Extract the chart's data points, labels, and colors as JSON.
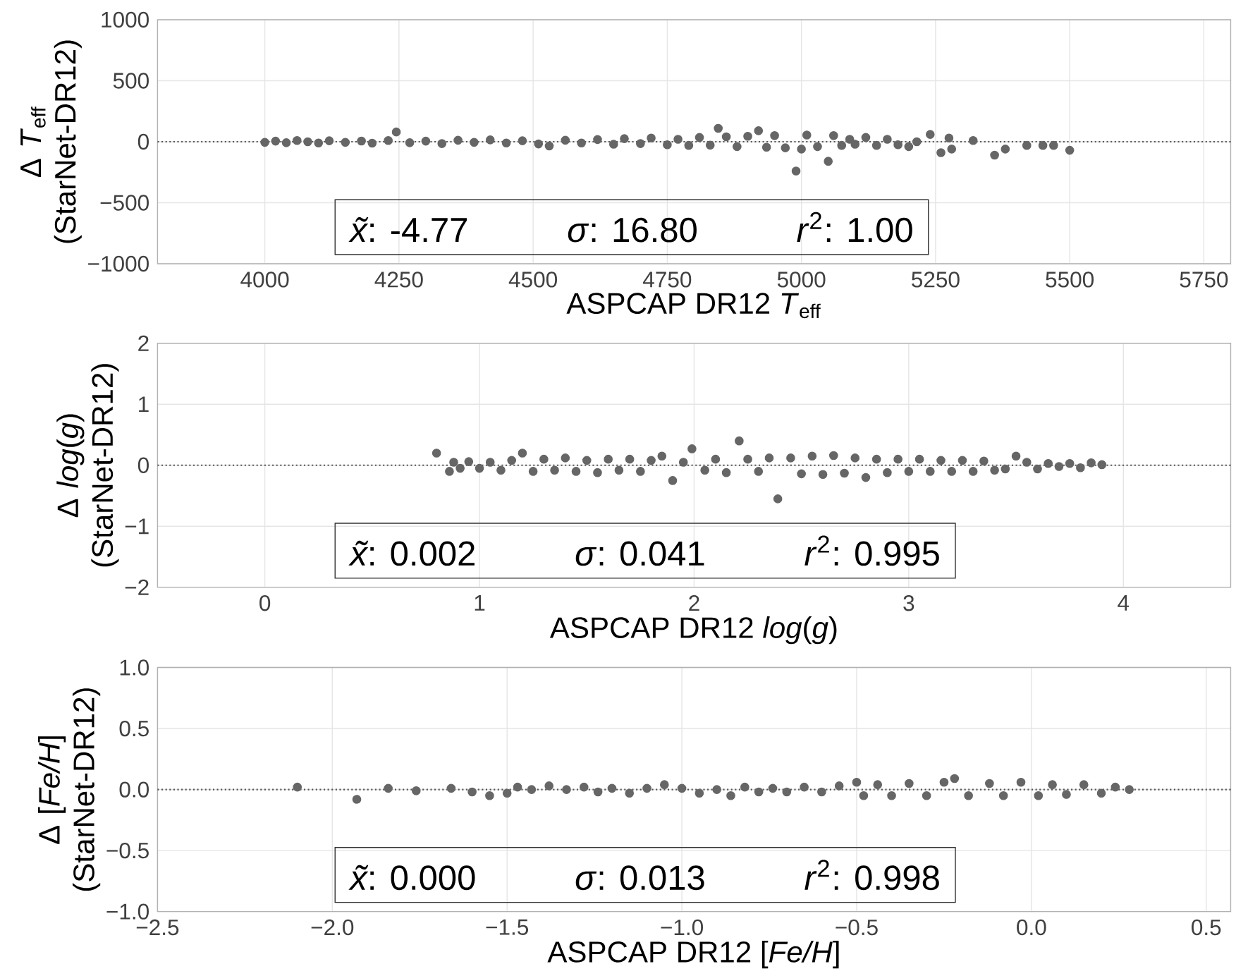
{
  "chart_data": [
    {
      "type": "scatter",
      "xlabel": "ASPCAP DR12 *T*$_{eff}$",
      "ylabel": "Δ *T*$_{eff}$ (StarNet-DR12)",
      "xlim": [
        3800,
        5800
      ],
      "ylim": [
        -1000,
        1000
      ],
      "xticks": [
        4000,
        4250,
        4500,
        4750,
        5000,
        5250,
        5500,
        5750
      ],
      "yticks": [
        {
          "value": -1000,
          "label": "−1000"
        },
        {
          "value": -500,
          "label": "−500"
        },
        0,
        500,
        1000
      ],
      "grid": true,
      "color": "#666666",
      "annotations": [
        "*x̃*:  -4.77",
        "*σ*:  16.80",
        "*r*$^{2}$:  1.00"
      ],
      "ref_lines": [
        {
          "axis": "y",
          "value": 0,
          "line_style": "dotted",
          "color": "#555555"
        }
      ],
      "x": [
        4000,
        4020,
        4040,
        4060,
        4080,
        4100,
        4120,
        4150,
        4180,
        4200,
        4230,
        4245,
        4270,
        4300,
        4330,
        4360,
        4390,
        4420,
        4450,
        4480,
        4510,
        4530,
        4560,
        4590,
        4620,
        4650,
        4670,
        4700,
        4720,
        4750,
        4770,
        4790,
        4810,
        4830,
        4845,
        4860,
        4880,
        4900,
        4920,
        4935,
        4950,
        4970,
        4990,
        5000,
        5010,
        5030,
        5050,
        5060,
        5075,
        5090,
        5100,
        5120,
        5140,
        5160,
        5180,
        5200,
        5215,
        5240,
        5260,
        5275,
        5280,
        5320,
        5360,
        5380,
        5420,
        5450,
        5470,
        5500
      ],
      "values": [
        -5,
        5,
        -8,
        10,
        0,
        -10,
        8,
        -5,
        6,
        -12,
        10,
        80,
        -8,
        5,
        -15,
        12,
        -5,
        15,
        -10,
        8,
        -18,
        -35,
        12,
        -10,
        18,
        -20,
        25,
        -15,
        30,
        -25,
        20,
        -30,
        35,
        -28,
        110,
        40,
        -40,
        45,
        90,
        -45,
        50,
        -50,
        -240,
        -60,
        55,
        -40,
        -160,
        50,
        -30,
        20,
        -20,
        35,
        -30,
        20,
        -25,
        -40,
        0,
        60,
        -90,
        30,
        -60,
        10,
        -110,
        -60,
        -30,
        -30,
        -30,
        -70
      ]
    },
    {
      "type": "scatter",
      "xlabel": "ASPCAP DR12 *log*(*g*)",
      "ylabel": "Δ *log*(*g*) (StarNet-DR12)",
      "xlim": [
        -0.5,
        4.5
      ],
      "ylim": [
        -2,
        2
      ],
      "xticks": [
        0,
        1,
        2,
        3,
        4
      ],
      "yticks": [
        {
          "value": -2,
          "label": "−2"
        },
        {
          "value": -1,
          "label": "−1"
        },
        0,
        1,
        2
      ],
      "grid": true,
      "color": "#666666",
      "annotations": [
        "*x̃*:  0.002",
        "*σ*:  0.041",
        "*r*$^{2}$:  0.995"
      ],
      "ref_lines": [
        {
          "axis": "y",
          "value": 0,
          "line_style": "dotted",
          "color": "#555555"
        }
      ],
      "x": [
        0.8,
        0.86,
        0.88,
        0.91,
        0.95,
        1.0,
        1.05,
        1.1,
        1.15,
        1.2,
        1.25,
        1.3,
        1.35,
        1.4,
        1.45,
        1.5,
        1.55,
        1.6,
        1.65,
        1.7,
        1.75,
        1.8,
        1.85,
        1.9,
        1.95,
        1.99,
        2.05,
        2.1,
        2.15,
        2.21,
        2.25,
        2.3,
        2.35,
        2.39,
        2.45,
        2.5,
        2.55,
        2.6,
        2.65,
        2.7,
        2.75,
        2.8,
        2.85,
        2.9,
        2.95,
        3.0,
        3.05,
        3.1,
        3.15,
        3.2,
        3.25,
        3.3,
        3.35,
        3.4,
        3.45,
        3.5,
        3.55,
        3.6,
        3.65,
        3.7,
        3.75,
        3.8,
        3.85,
        3.9
      ],
      "values": [
        0.2,
        -0.1,
        0.05,
        -0.05,
        0.06,
        -0.05,
        0.05,
        -0.08,
        0.08,
        0.2,
        -0.1,
        0.1,
        -0.08,
        0.12,
        -0.1,
        0.08,
        -0.12,
        0.1,
        -0.08,
        0.1,
        -0.1,
        0.08,
        0.15,
        -0.25,
        0.05,
        0.27,
        -0.08,
        0.1,
        -0.12,
        0.4,
        0.1,
        -0.1,
        0.12,
        -0.55,
        0.12,
        -0.14,
        0.15,
        -0.15,
        0.16,
        -0.13,
        0.12,
        -0.2,
        0.1,
        -0.12,
        0.1,
        -0.1,
        0.1,
        -0.1,
        0.08,
        -0.1,
        0.08,
        -0.1,
        0.07,
        -0.08,
        -0.06,
        0.15,
        0.05,
        -0.06,
        0.03,
        -0.02,
        0.03,
        -0.04,
        0.04,
        0.01
      ]
    },
    {
      "type": "scatter",
      "xlabel": "ASPCAP DR12 [*Fe/H*]",
      "ylabel": "Δ [*Fe/H*] (StarNet-DR12)",
      "xlim": [
        -2.5,
        0.57
      ],
      "ylim": [
        -1,
        1
      ],
      "xticks": [
        {
          "value": -2.5,
          "label": "−2.5"
        },
        {
          "value": -2,
          "label": "−2.0"
        },
        {
          "value": -1.5,
          "label": "−1.5"
        },
        {
          "value": -1,
          "label": "−1.0"
        },
        {
          "value": -0.5,
          "label": "−0.5"
        },
        {
          "value": 0,
          "label": "0.0"
        },
        0.5
      ],
      "yticks": [
        {
          "value": -1,
          "label": "−1.0"
        },
        {
          "value": -0.5,
          "label": "−0.5"
        },
        {
          "value": 0,
          "label": "0.0"
        },
        0.5,
        {
          "value": 1,
          "label": "1.0"
        }
      ],
      "grid": true,
      "color": "#666666",
      "annotations": [
        "*x̃*:  0.000",
        "*σ*:  0.013",
        "*r*$^{2}$:  0.998"
      ],
      "ref_lines": [
        {
          "axis": "y",
          "value": 0,
          "line_style": "dotted",
          "color": "#555555"
        }
      ],
      "x": [
        -2.1,
        -1.93,
        -1.84,
        -1.76,
        -1.66,
        -1.6,
        -1.55,
        -1.5,
        -1.47,
        -1.43,
        -1.38,
        -1.33,
        -1.28,
        -1.24,
        -1.2,
        -1.15,
        -1.1,
        -1.05,
        -1.0,
        -0.95,
        -0.9,
        -0.86,
        -0.82,
        -0.78,
        -0.74,
        -0.7,
        -0.65,
        -0.6,
        -0.55,
        -0.5,
        -0.48,
        -0.44,
        -0.4,
        -0.35,
        -0.3,
        -0.25,
        -0.22,
        -0.18,
        -0.12,
        -0.08,
        -0.03,
        0.02,
        0.06,
        0.1,
        0.15,
        0.2,
        0.24,
        0.28
      ],
      "values": [
        0.02,
        -0.08,
        0.01,
        -0.01,
        0.01,
        -0.02,
        -0.05,
        -0.03,
        0.02,
        0.0,
        0.03,
        0.0,
        0.02,
        -0.02,
        0.01,
        -0.03,
        0.01,
        0.04,
        0.01,
        -0.03,
        0.0,
        -0.05,
        0.02,
        -0.02,
        0.01,
        -0.02,
        0.02,
        -0.02,
        0.03,
        0.06,
        -0.05,
        0.04,
        -0.05,
        0.05,
        -0.05,
        0.06,
        0.09,
        -0.05,
        0.05,
        -0.05,
        0.06,
        -0.05,
        0.04,
        -0.04,
        0.04,
        -0.03,
        0.02,
        0.0
      ]
    }
  ]
}
